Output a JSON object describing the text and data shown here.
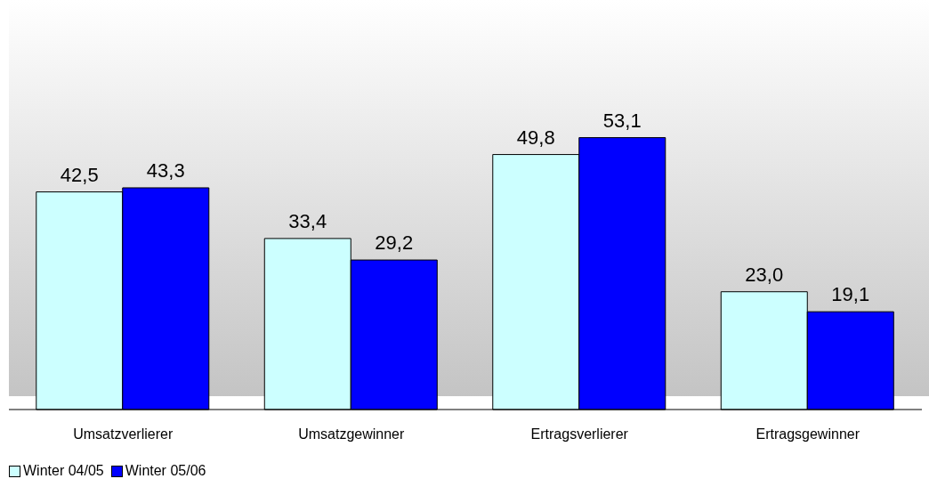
{
  "chart_data": {
    "type": "bar",
    "categories": [
      "Umsatzverlierer",
      "Umsatzgewinner",
      "Ertragsverlierer",
      "Ertragsgewinner"
    ],
    "series": [
      {
        "name": "Winter 04/05",
        "color": "#ccffff",
        "values": [
          42.5,
          33.4,
          49.8,
          23.0
        ],
        "value_labels": [
          "42,5",
          "33,4",
          "49,8",
          "23,0"
        ]
      },
      {
        "name": "Winter 05/06",
        "color": "#0000ff",
        "values": [
          43.3,
          29.2,
          53.1,
          19.1
        ],
        "value_labels": [
          "43,3",
          "29,2",
          "53,1",
          "19,1"
        ]
      }
    ],
    "legend": "bottom left",
    "grid": false
  }
}
